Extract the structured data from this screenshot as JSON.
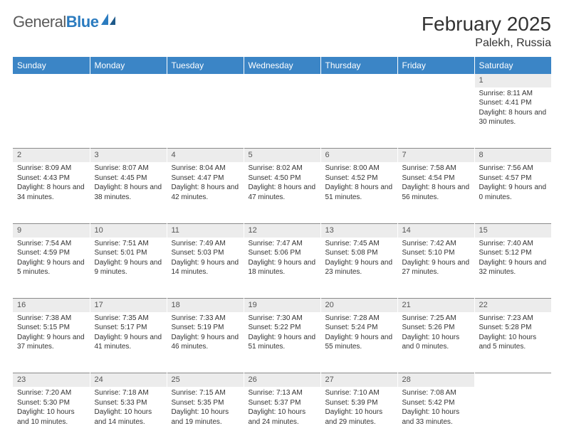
{
  "brand": {
    "name_gray": "General",
    "name_blue": "Blue"
  },
  "title": "February 2025",
  "location": "Palekh, Russia",
  "colors": {
    "header_bg": "#3b85c6",
    "header_text": "#ffffff",
    "daynum_bg": "#ececec",
    "daynum_border": "#8a8a8a",
    "body_text": "#333333",
    "logo_gray": "#5a5a5a",
    "logo_blue": "#2b7bbf"
  },
  "typography": {
    "title_fontsize": 28,
    "location_fontsize": 16,
    "weekday_fontsize": 12,
    "daynum_fontsize": 11,
    "cell_fontsize": 10
  },
  "weekdays": [
    "Sunday",
    "Monday",
    "Tuesday",
    "Wednesday",
    "Thursday",
    "Friday",
    "Saturday"
  ],
  "weeks": [
    [
      null,
      null,
      null,
      null,
      null,
      null,
      {
        "n": "1",
        "sr": "Sunrise: 8:11 AM",
        "ss": "Sunset: 4:41 PM",
        "dl": "Daylight: 8 hours and 30 minutes."
      }
    ],
    [
      {
        "n": "2",
        "sr": "Sunrise: 8:09 AM",
        "ss": "Sunset: 4:43 PM",
        "dl": "Daylight: 8 hours and 34 minutes."
      },
      {
        "n": "3",
        "sr": "Sunrise: 8:07 AM",
        "ss": "Sunset: 4:45 PM",
        "dl": "Daylight: 8 hours and 38 minutes."
      },
      {
        "n": "4",
        "sr": "Sunrise: 8:04 AM",
        "ss": "Sunset: 4:47 PM",
        "dl": "Daylight: 8 hours and 42 minutes."
      },
      {
        "n": "5",
        "sr": "Sunrise: 8:02 AM",
        "ss": "Sunset: 4:50 PM",
        "dl": "Daylight: 8 hours and 47 minutes."
      },
      {
        "n": "6",
        "sr": "Sunrise: 8:00 AM",
        "ss": "Sunset: 4:52 PM",
        "dl": "Daylight: 8 hours and 51 minutes."
      },
      {
        "n": "7",
        "sr": "Sunrise: 7:58 AM",
        "ss": "Sunset: 4:54 PM",
        "dl": "Daylight: 8 hours and 56 minutes."
      },
      {
        "n": "8",
        "sr": "Sunrise: 7:56 AM",
        "ss": "Sunset: 4:57 PM",
        "dl": "Daylight: 9 hours and 0 minutes."
      }
    ],
    [
      {
        "n": "9",
        "sr": "Sunrise: 7:54 AM",
        "ss": "Sunset: 4:59 PM",
        "dl": "Daylight: 9 hours and 5 minutes."
      },
      {
        "n": "10",
        "sr": "Sunrise: 7:51 AM",
        "ss": "Sunset: 5:01 PM",
        "dl": "Daylight: 9 hours and 9 minutes."
      },
      {
        "n": "11",
        "sr": "Sunrise: 7:49 AM",
        "ss": "Sunset: 5:03 PM",
        "dl": "Daylight: 9 hours and 14 minutes."
      },
      {
        "n": "12",
        "sr": "Sunrise: 7:47 AM",
        "ss": "Sunset: 5:06 PM",
        "dl": "Daylight: 9 hours and 18 minutes."
      },
      {
        "n": "13",
        "sr": "Sunrise: 7:45 AM",
        "ss": "Sunset: 5:08 PM",
        "dl": "Daylight: 9 hours and 23 minutes."
      },
      {
        "n": "14",
        "sr": "Sunrise: 7:42 AM",
        "ss": "Sunset: 5:10 PM",
        "dl": "Daylight: 9 hours and 27 minutes."
      },
      {
        "n": "15",
        "sr": "Sunrise: 7:40 AM",
        "ss": "Sunset: 5:12 PM",
        "dl": "Daylight: 9 hours and 32 minutes."
      }
    ],
    [
      {
        "n": "16",
        "sr": "Sunrise: 7:38 AM",
        "ss": "Sunset: 5:15 PM",
        "dl": "Daylight: 9 hours and 37 minutes."
      },
      {
        "n": "17",
        "sr": "Sunrise: 7:35 AM",
        "ss": "Sunset: 5:17 PM",
        "dl": "Daylight: 9 hours and 41 minutes."
      },
      {
        "n": "18",
        "sr": "Sunrise: 7:33 AM",
        "ss": "Sunset: 5:19 PM",
        "dl": "Daylight: 9 hours and 46 minutes."
      },
      {
        "n": "19",
        "sr": "Sunrise: 7:30 AM",
        "ss": "Sunset: 5:22 PM",
        "dl": "Daylight: 9 hours and 51 minutes."
      },
      {
        "n": "20",
        "sr": "Sunrise: 7:28 AM",
        "ss": "Sunset: 5:24 PM",
        "dl": "Daylight: 9 hours and 55 minutes."
      },
      {
        "n": "21",
        "sr": "Sunrise: 7:25 AM",
        "ss": "Sunset: 5:26 PM",
        "dl": "Daylight: 10 hours and 0 minutes."
      },
      {
        "n": "22",
        "sr": "Sunrise: 7:23 AM",
        "ss": "Sunset: 5:28 PM",
        "dl": "Daylight: 10 hours and 5 minutes."
      }
    ],
    [
      {
        "n": "23",
        "sr": "Sunrise: 7:20 AM",
        "ss": "Sunset: 5:30 PM",
        "dl": "Daylight: 10 hours and 10 minutes."
      },
      {
        "n": "24",
        "sr": "Sunrise: 7:18 AM",
        "ss": "Sunset: 5:33 PM",
        "dl": "Daylight: 10 hours and 14 minutes."
      },
      {
        "n": "25",
        "sr": "Sunrise: 7:15 AM",
        "ss": "Sunset: 5:35 PM",
        "dl": "Daylight: 10 hours and 19 minutes."
      },
      {
        "n": "26",
        "sr": "Sunrise: 7:13 AM",
        "ss": "Sunset: 5:37 PM",
        "dl": "Daylight: 10 hours and 24 minutes."
      },
      {
        "n": "27",
        "sr": "Sunrise: 7:10 AM",
        "ss": "Sunset: 5:39 PM",
        "dl": "Daylight: 10 hours and 29 minutes."
      },
      {
        "n": "28",
        "sr": "Sunrise: 7:08 AM",
        "ss": "Sunset: 5:42 PM",
        "dl": "Daylight: 10 hours and 33 minutes."
      },
      null
    ]
  ]
}
